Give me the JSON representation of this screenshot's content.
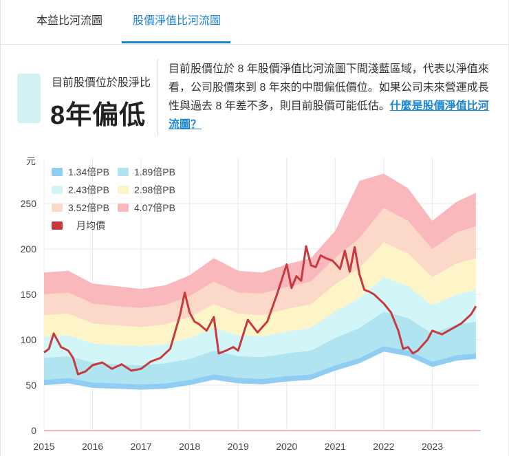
{
  "tabs": [
    {
      "label": "本益比河流圖",
      "active": false
    },
    {
      "label": "股價淨值比河流圖",
      "active": true
    }
  ],
  "status": {
    "label": "目前股價位於股淨比",
    "value": "8年偏低",
    "description": "目前股價位於 8 年股價淨值比河流圖下間淺藍區域，代表以淨值來看，公司股價來到 8 年來的中間偏低價位。如果公司未來營運成長性與過去 8 年差不多，則目前股價可能低估。",
    "link_text": "什麼是股價淨值比河流圖？"
  },
  "chart_data": {
    "type": "area",
    "y_unit_label": "元",
    "ylim": [
      0,
      300
    ],
    "y_ticks": [
      "0",
      "50",
      "100",
      "150",
      "200",
      "250"
    ],
    "x_ticks": [
      "2015",
      "2016",
      "2017",
      "2018",
      "2019",
      "2020",
      "2021",
      "2022",
      "2023"
    ],
    "x_range": [
      2015.0,
      2024.0
    ],
    "legend": [
      {
        "label": "1.34倍PB",
        "color": "#8fcdf3"
      },
      {
        "label": "1.89倍PB",
        "color": "#b0e4f0"
      },
      {
        "label": "2.43倍PB",
        "color": "#d2f6f7"
      },
      {
        "label": "2.98倍PB",
        "color": "#fdf5c7"
      },
      {
        "label": "3.52倍PB",
        "color": "#fbd8c7"
      },
      {
        "label": "4.07倍PB",
        "color": "#f9b9bc"
      },
      {
        "label": "月均價",
        "color": "#c8393f"
      }
    ],
    "series": [
      {
        "name": "1.34倍PB",
        "x": [
          2015.0,
          2015.5,
          2016.0,
          2016.5,
          2017.0,
          2017.5,
          2018.0,
          2018.5,
          2019.0,
          2019.5,
          2020.0,
          2020.5,
          2021.0,
          2021.5,
          2022.0,
          2022.5,
          2023.0,
          2023.5,
          2023.9
        ],
        "values": [
          56,
          58,
          53,
          52,
          51,
          52,
          56,
          62,
          58,
          57,
          60,
          62,
          72,
          80,
          93,
          88,
          76,
          83,
          85
        ]
      },
      {
        "name": "1.89倍PB",
        "x": [
          2015.0,
          2015.5,
          2016.0,
          2016.5,
          2017.0,
          2017.5,
          2018.0,
          2018.5,
          2019.0,
          2019.5,
          2020.0,
          2020.5,
          2021.0,
          2021.5,
          2022.0,
          2022.5,
          2023.0,
          2023.5,
          2023.9
        ],
        "values": [
          80,
          82,
          75,
          73,
          72,
          74,
          79,
          88,
          82,
          81,
          85,
          88,
          102,
          113,
          131,
          124,
          107,
          117,
          120
        ]
      },
      {
        "name": "2.43倍PB",
        "x": [
          2015.0,
          2015.5,
          2016.0,
          2016.5,
          2017.0,
          2017.5,
          2018.0,
          2018.5,
          2019.0,
          2019.5,
          2020.0,
          2020.5,
          2021.0,
          2021.5,
          2022.0,
          2022.5,
          2023.0,
          2023.5,
          2023.9
        ],
        "values": [
          103,
          105,
          96,
          94,
          93,
          95,
          102,
          113,
          105,
          104,
          109,
          113,
          131,
          146,
          169,
          159,
          138,
          150,
          155
        ]
      },
      {
        "name": "2.98倍PB",
        "x": [
          2015.0,
          2015.5,
          2016.0,
          2016.5,
          2017.0,
          2017.5,
          2018.0,
          2018.5,
          2019.0,
          2019.5,
          2020.0,
          2020.5,
          2021.0,
          2021.5,
          2022.0,
          2022.5,
          2023.0,
          2023.5,
          2023.9
        ],
        "values": [
          127,
          129,
          118,
          116,
          114,
          117,
          125,
          139,
          129,
          127,
          134,
          139,
          161,
          179,
          207,
          195,
          169,
          184,
          190
        ]
      },
      {
        "name": "3.52倍PB",
        "x": [
          2015.0,
          2015.5,
          2016.0,
          2016.5,
          2017.0,
          2017.5,
          2018.0,
          2018.5,
          2019.0,
          2019.5,
          2020.0,
          2020.5,
          2021.0,
          2021.5,
          2022.0,
          2022.5,
          2023.0,
          2023.5,
          2023.9
        ],
        "values": [
          150,
          152,
          140,
          137,
          135,
          138,
          148,
          164,
          152,
          151,
          158,
          164,
          190,
          212,
          245,
          231,
          200,
          218,
          225
        ]
      },
      {
        "name": "4.07倍PB",
        "x": [
          2015.0,
          2015.5,
          2016.0,
          2016.5,
          2017.0,
          2017.5,
          2018.0,
          2018.5,
          2019.0,
          2019.5,
          2020.0,
          2020.5,
          2021.0,
          2021.5,
          2022.0,
          2022.5,
          2023.0,
          2023.5,
          2023.9
        ],
        "values": [
          174,
          176,
          162,
          159,
          156,
          160,
          171,
          190,
          176,
          174,
          183,
          190,
          220,
          275,
          283,
          267,
          231,
          252,
          262
        ]
      },
      {
        "name": "月均價",
        "x": [
          2015.0,
          2015.1,
          2015.2,
          2015.35,
          2015.5,
          2015.6,
          2015.7,
          2015.85,
          2016.0,
          2016.2,
          2016.4,
          2016.6,
          2016.8,
          2017.0,
          2017.2,
          2017.4,
          2017.6,
          2017.8,
          2017.9,
          2018.0,
          2018.1,
          2018.2,
          2018.35,
          2018.5,
          2018.6,
          2018.75,
          2018.9,
          2019.0,
          2019.2,
          2019.4,
          2019.6,
          2019.8,
          2020.0,
          2020.1,
          2020.2,
          2020.3,
          2020.4,
          2020.5,
          2020.6,
          2020.7,
          2020.8,
          2020.95,
          2021.1,
          2021.2,
          2021.3,
          2021.4,
          2021.5,
          2021.6,
          2021.7,
          2021.8,
          2021.9,
          2022.0,
          2022.15,
          2022.3,
          2022.4,
          2022.5,
          2022.6,
          2022.7,
          2022.8,
          2022.9,
          2023.0,
          2023.2,
          2023.4,
          2023.6,
          2023.8,
          2023.9
        ],
        "values": [
          86,
          90,
          107,
          92,
          88,
          80,
          62,
          65,
          72,
          75,
          68,
          73,
          66,
          68,
          76,
          80,
          90,
          127,
          152,
          130,
          120,
          117,
          110,
          125,
          85,
          88,
          92,
          88,
          122,
          108,
          120,
          150,
          183,
          157,
          170,
          165,
          203,
          182,
          180,
          193,
          190,
          187,
          178,
          198,
          175,
          202,
          172,
          155,
          153,
          150,
          145,
          140,
          130,
          110,
          90,
          92,
          85,
          88,
          94,
          100,
          110,
          106,
          112,
          118,
          128,
          137
        ]
      }
    ]
  }
}
